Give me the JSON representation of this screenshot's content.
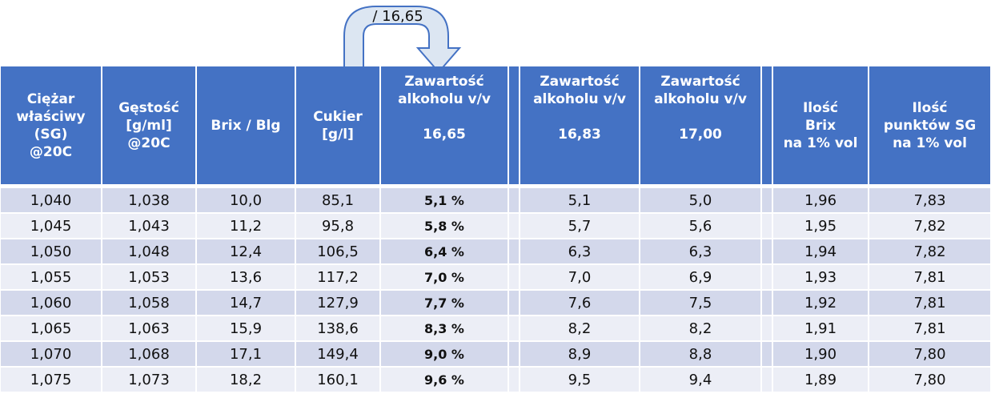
{
  "annotation": "/ 16,65",
  "columns": [
    {
      "lines": [
        "Ciężar",
        "właściwy",
        "(SG)",
        "@20C"
      ]
    },
    {
      "lines": [
        "Gęstość",
        "[g/ml]",
        "@20C"
      ]
    },
    {
      "lines": [
        "Brix / Blg"
      ]
    },
    {
      "lines": [
        "Cukier",
        "[g/l]"
      ]
    },
    {
      "lines": [
        "Zawartość",
        "alkoholu v/v"
      ],
      "sub": "16,65"
    },
    {
      "lines": [
        "Zawartość",
        "alkoholu v/v"
      ],
      "sub": "16,83"
    },
    {
      "lines": [
        "Zawartość",
        "alkoholu v/v"
      ],
      "sub": "17,00"
    },
    {
      "lines": [
        "Ilość",
        "Brix",
        "na 1% vol"
      ]
    },
    {
      "lines": [
        "Ilość",
        "punktów SG",
        "na 1% vol"
      ]
    }
  ],
  "rows": [
    [
      "1,040",
      "1,038",
      "10,0",
      "85,1",
      "5,1 %",
      "5,1",
      "5,0",
      "1,96",
      "7,83"
    ],
    [
      "1,045",
      "1,043",
      "11,2",
      "95,8",
      "5,8 %",
      "5,7",
      "5,6",
      "1,95",
      "7,82"
    ],
    [
      "1,050",
      "1,048",
      "12,4",
      "106,5",
      "6,4 %",
      "6,3",
      "6,3",
      "1,94",
      "7,82"
    ],
    [
      "1,055",
      "1,053",
      "13,6",
      "117,2",
      "7,0 %",
      "7,0",
      "6,9",
      "1,93",
      "7,81"
    ],
    [
      "1,060",
      "1,058",
      "14,7",
      "127,9",
      "7,7 %",
      "7,6",
      "7,5",
      "1,92",
      "7,81"
    ],
    [
      "1,065",
      "1,063",
      "15,9",
      "138,6",
      "8,3 %",
      "8,2",
      "8,2",
      "1,91",
      "7,81"
    ],
    [
      "1,070",
      "1,068",
      "17,1",
      "149,4",
      "9,0 %",
      "8,9",
      "8,8",
      "1,90",
      "7,80"
    ],
    [
      "1,075",
      "1,073",
      "18,2",
      "160,1",
      "9,6 %",
      "9,5",
      "9,4",
      "1,89",
      "7,80"
    ]
  ]
}
